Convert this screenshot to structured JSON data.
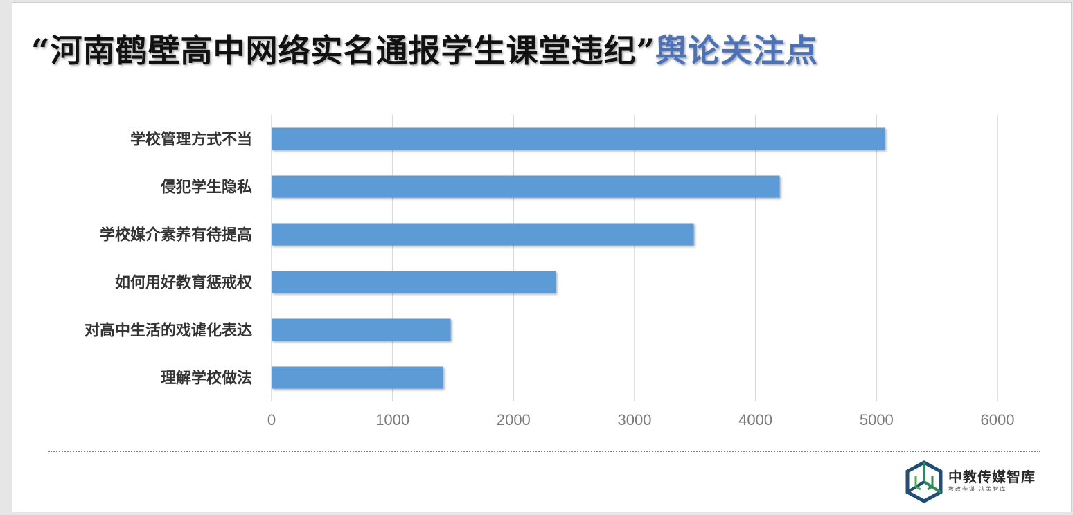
{
  "title": {
    "main": "“河南鹤壁高中网络实名通报学生课堂违纪”",
    "accent": "舆论关注点"
  },
  "colors": {
    "bar": "#5b9bd5",
    "title_accent": "#4a72b8",
    "grid": "#d9d9d9"
  },
  "chart_data": {
    "type": "bar",
    "orientation": "horizontal",
    "categories": [
      "学校管理方式不当",
      "侵犯学生隐私",
      "学校媒介素养有待提高",
      "如何用好教育惩戒权",
      "对高中生活的戏谑化表达",
      "理解学校做法"
    ],
    "values": [
      5070,
      4200,
      3490,
      2350,
      1480,
      1420
    ],
    "xlim": [
      0,
      6000
    ],
    "xticks": [
      0,
      1000,
      2000,
      3000,
      4000,
      5000,
      6000
    ],
    "grid": true,
    "legend": false
  },
  "logo": {
    "name": "中教传媒智库",
    "subtitle": "教改参谋  决策智库",
    "icon": "hexagon-cube-icon"
  }
}
